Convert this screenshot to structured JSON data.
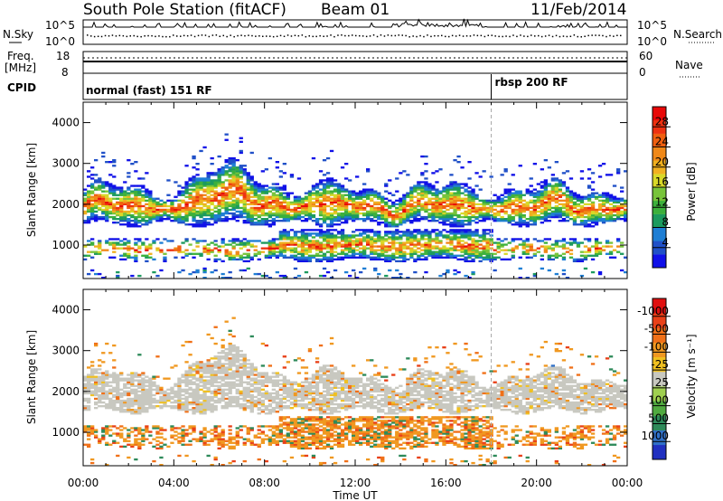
{
  "header": {
    "station": "South Pole Station (fitACF)",
    "beam": "Beam 01",
    "date": "11/Feb/2014"
  },
  "summary_panels": {
    "nsky": {
      "label": "N.Sky",
      "ticks": [
        "10^5",
        "10^0"
      ]
    },
    "nsearch": {
      "label": "N.Search",
      "ticks": [
        "10^5",
        "10^0"
      ]
    },
    "freq": {
      "label_line1": "Freq.",
      "label_line2": "[MHz]",
      "ticks": [
        "18",
        "8"
      ]
    },
    "nave": {
      "label": "Nave",
      "ticks": [
        "60",
        "0"
      ]
    },
    "cpid": {
      "label": "CPID",
      "segments": [
        {
          "name": "normal (fast) 151 RF",
          "start_hour": 0.0
        },
        {
          "name": "rbsp 200 RF",
          "start_hour": 18.0
        }
      ]
    }
  },
  "chart_data": [
    {
      "type": "heatmap",
      "title": "",
      "xlabel": "Time UT",
      "ylabel": "Slant Range [km]",
      "x_range_hours": [
        0,
        24
      ],
      "xticks": [
        "00:00",
        "04:00",
        "08:00",
        "12:00",
        "16:00",
        "20:00",
        "00:00"
      ],
      "ylim": [
        180,
        4500
      ],
      "yticks": [
        "1000",
        "2000",
        "3000",
        "4000"
      ],
      "colorbar": {
        "label": "Power [dB]",
        "ticks": [
          "4",
          "8",
          "12",
          "16",
          "20",
          "24",
          "28"
        ],
        "colors": [
          "#1010e8",
          "#2050c8",
          "#1e7ed4",
          "#1c9a5e",
          "#3cb03c",
          "#78c43a",
          "#d8d828",
          "#f0b020",
          "#f08818",
          "#f06010",
          "#ee3210",
          "#e80808"
        ]
      },
      "features": [
        {
          "name": "main F-region band",
          "start_hour": 0.0,
          "end_hour": 24.0,
          "range_km_approx": [
            1500,
            2500
          ],
          "peak_power_db": 28
        },
        {
          "name": "near-range band",
          "start_hour": 0.0,
          "end_hour": 24.0,
          "range_km_approx": [
            600,
            1300
          ],
          "peak_power_db": 24
        }
      ]
    },
    {
      "type": "heatmap",
      "title": "",
      "xlabel": "Time UT",
      "ylabel": "Slant Range [km]",
      "x_range_hours": [
        0,
        24
      ],
      "xticks": [
        "00:00",
        "04:00",
        "08:00",
        "12:00",
        "16:00",
        "20:00",
        "00:00"
      ],
      "ylim": [
        180,
        4500
      ],
      "yticks": [
        "1000",
        "2000",
        "3000",
        "4000"
      ],
      "colorbar": {
        "label": "Velocity [m s⁻¹]",
        "ticks": [
          "1000",
          "500",
          "100",
          "25",
          "-25",
          "-100",
          "-500",
          "-1000"
        ],
        "colors": [
          "#2030c0",
          "#3070c8",
          "#2e8a5a",
          "#50aa40",
          "#a0d050",
          "#c8c8c0",
          "#f0c020",
          "#f09820",
          "#f07018",
          "#e84018",
          "#e01010"
        ]
      },
      "features": [
        {
          "name": "ground/low-velocity scatter",
          "velocity_class": "-25..25",
          "range_km_approx": [
            1500,
            2500
          ]
        },
        {
          "name": "receding flow",
          "velocity_class": "-100..-500",
          "range_km_approx": [
            600,
            1300
          ]
        }
      ]
    }
  ]
}
